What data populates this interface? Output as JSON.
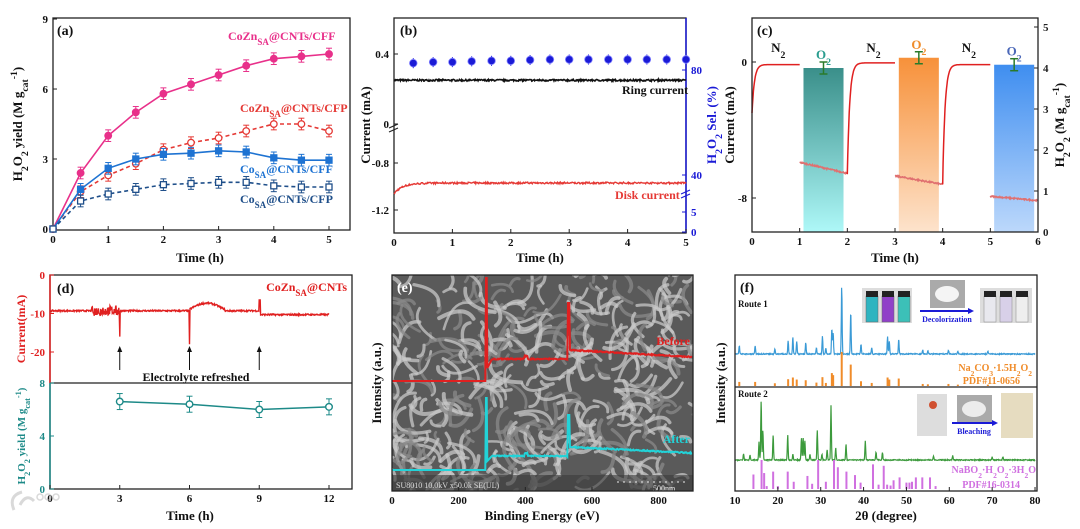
{
  "watermark": {
    "logo_text": "大数跨境"
  },
  "chart_data": [
    {
      "panel": "(a)",
      "type": "line",
      "xlabel": "Time (h)",
      "ylabel": "H_{2}O_{2} yield (M g_{cat}^{-1})",
      "xlim": [
        0,
        5
      ],
      "ylim": [
        0,
        9
      ],
      "xticks": [
        0,
        1,
        2,
        3,
        4,
        5
      ],
      "yticks": [
        0,
        3,
        6,
        9
      ],
      "x": [
        0,
        0.5,
        1,
        1.5,
        2,
        2.5,
        3,
        3.5,
        4,
        4.5,
        5
      ],
      "series": [
        {
          "name": "CoZn_{SA}@CNTs/CFF",
          "color": "#e8308a",
          "style": "solid",
          "marker": "circle",
          "values": [
            0,
            2.4,
            4.0,
            5.0,
            5.8,
            6.2,
            6.6,
            7.0,
            7.3,
            7.4,
            7.5
          ]
        },
        {
          "name": "CoZn_{SA}@CNTs/CFP",
          "color": "#e53935",
          "style": "dashed",
          "marker": "open-circle",
          "values": [
            0,
            1.6,
            2.3,
            2.8,
            3.4,
            3.7,
            3.9,
            4.2,
            4.5,
            4.5,
            4.2
          ]
        },
        {
          "name": "Co_{SA}@CNTs/CFF",
          "color": "#1e73d2",
          "style": "solid",
          "marker": "square",
          "values": [
            0,
            1.7,
            2.6,
            3.0,
            3.2,
            3.25,
            3.35,
            3.3,
            3.05,
            2.95,
            2.95
          ]
        },
        {
          "name": "Co_{SA}@CNTs/CFP",
          "color": "#1f4f8a",
          "style": "dashed",
          "marker": "open-square",
          "values": [
            0,
            1.2,
            1.5,
            1.7,
            1.9,
            1.95,
            2.0,
            2.0,
            1.85,
            1.8,
            1.8
          ]
        }
      ],
      "error": 0.25
    },
    {
      "panel": "(b)",
      "type": "line",
      "xlabel": "Time (h)",
      "ylabel": "Current (mA)",
      "ylabel_right": "H_{2}O_{2} Sel. (%)",
      "xlim": [
        0,
        5
      ],
      "xticks": [
        0,
        1,
        2,
        3,
        4,
        5
      ],
      "yticks": [
        0.4,
        0.0,
        -0.8,
        -1.2
      ],
      "yticks_right": [
        80,
        40,
        5,
        0
      ],
      "ring_current": {
        "label": "Ring current",
        "value": 0.25,
        "color": "#111111"
      },
      "disk_current": {
        "label": "Disk current",
        "start": -1.06,
        "steady": -0.97,
        "color": "#e53935"
      },
      "selectivity": {
        "color": "#1a1ad6",
        "x": [
          0.33,
          0.67,
          1,
          1.33,
          1.67,
          2,
          2.33,
          2.67,
          3,
          3.33,
          3.67,
          4,
          4.33,
          4.67,
          5
        ],
        "values": [
          82.6,
          83.0,
          83.0,
          83.3,
          83.5,
          83.5,
          83.8,
          84,
          84,
          84,
          84,
          84,
          84,
          84,
          84
        ]
      }
    },
    {
      "panel": "(c)",
      "type": "bar",
      "xlabel": "Time (h)",
      "ylabel": "Current (mA)",
      "ylabel_right": "H_{2}O_{2} (M g_{cat}^{-1})",
      "xlim": [
        0,
        6
      ],
      "xticks": [
        0,
        1,
        2,
        3,
        4,
        5,
        6
      ],
      "yticks": [
        0,
        -8
      ],
      "yticks_right": [
        0,
        1,
        2,
        3,
        4,
        5
      ],
      "gas_labels": [
        {
          "text": "N_{2}",
          "t": 0.55,
          "color": "#111111"
        },
        {
          "text": "O_{2}",
          "t": 1.5,
          "color": "#2a9d8f"
        },
        {
          "text": "N_{2}",
          "t": 2.55,
          "color": "#111111"
        },
        {
          "text": "O_{2}",
          "t": 3.5,
          "color": "#f08c2a"
        },
        {
          "text": "N_{2}",
          "t": 4.55,
          "color": "#111111"
        },
        {
          "text": "O_{2}",
          "t": 5.5,
          "color": "#4a67b8"
        }
      ],
      "bars": [
        {
          "t": [
            1.08,
            1.92
          ],
          "yield": 4.0,
          "top": "#3a8f8a",
          "bottom": "#aef8f8"
        },
        {
          "t": [
            3.08,
            3.92
          ],
          "yield": 4.25,
          "top": "#f7913a",
          "bottom": "#fde3cc"
        },
        {
          "t": [
            5.08,
            5.92
          ],
          "yield": 4.08,
          "top": "#3f8ef0",
          "bottom": "#bcd8fb"
        }
      ],
      "current_segments": [
        {
          "gas": "N2",
          "t": [
            0,
            1
          ],
          "start": -3.0,
          "end": -0.15
        },
        {
          "gas": "O2",
          "t": [
            1,
            2
          ],
          "start": -5.9,
          "end": -6.55
        },
        {
          "gas": "N2",
          "t": [
            2,
            3
          ],
          "start": -6.6,
          "end": -0.05
        },
        {
          "gas": "O2",
          "t": [
            3,
            4
          ],
          "start": -6.7,
          "end": -7.2
        },
        {
          "gas": "N2",
          "t": [
            4,
            5
          ],
          "start": -7.2,
          "end": -0.15
        },
        {
          "gas": "O2",
          "t": [
            5,
            6
          ],
          "start": -7.9,
          "end": -8.15
        }
      ]
    },
    {
      "panel": "(d)",
      "type": "line",
      "label": "CoZn_{SA}@CNTs",
      "annotation": "Electrolyte refreshed",
      "xlabel": "Time (h)",
      "ylabel_top": "Current(mA)",
      "ylabel_bottom": "H_{2}O_{2} yield (M g_{cat}^{-1})",
      "xlim": [
        0,
        12
      ],
      "xticks": [
        0,
        3,
        6,
        9,
        12
      ],
      "yticks_top": [
        0,
        -10,
        -20
      ],
      "yticks_bottom": [
        8,
        4,
        0
      ],
      "current": {
        "mean": -9.3,
        "after_9h": -10.3,
        "spikes": [
          {
            "t": 3,
            "min": -16
          },
          {
            "t": 6,
            "min": -18
          },
          {
            "t": 9,
            "min": -17
          }
        ]
      },
      "yield": {
        "x": [
          3,
          6,
          9,
          12
        ],
        "values": [
          6.6,
          6.4,
          6.0,
          6.2
        ],
        "color": "#1d8a88"
      }
    },
    {
      "panel": "(e)",
      "type": "line",
      "xlabel": "Binding Energy (eV)",
      "ylabel": "Intensity (a.u.)",
      "xlim": [
        0,
        900
      ],
      "xticks": [
        0,
        200,
        400,
        600,
        800
      ],
      "sem_caption": "SU8010 10.0kV x50.0k SE(UL)",
      "scale_bar": "500nm",
      "series": [
        {
          "name": "Before",
          "color": "#e02020",
          "peaks_eV": [
            284,
            532
          ]
        },
        {
          "name": "After",
          "color": "#22d3d8",
          "peaks_eV": [
            284,
            532
          ]
        }
      ]
    },
    {
      "panel": "(f)",
      "type": "line",
      "xlabel": "2θ (degree)",
      "ylabel": "Intensity (a.u.)",
      "xlim": [
        10,
        80
      ],
      "xticks": [
        10,
        20,
        30,
        40,
        50,
        60,
        70,
        80
      ],
      "route1": {
        "label": "Route 1",
        "color": "#3a9ad6",
        "inset_label": "Decolorization",
        "reference": "Na_{2}CO_{3}·1.5H_{2}O_{2}",
        "pdf": "PDF#11-0656",
        "ref_color": "#f08c2a",
        "peaks": [
          [
            11,
            12
          ],
          [
            14.7,
            12
          ],
          [
            19.3,
            8
          ],
          [
            22.4,
            20
          ],
          [
            23.5,
            25
          ],
          [
            24.4,
            19
          ],
          [
            26.5,
            17
          ],
          [
            29,
            10
          ],
          [
            30.4,
            26
          ],
          [
            31.2,
            9
          ],
          [
            32.6,
            38
          ],
          [
            32.9,
            32
          ],
          [
            34.9,
            100
          ],
          [
            37,
            63
          ],
          [
            39.4,
            14
          ],
          [
            41.9,
            9
          ],
          [
            45.6,
            25
          ],
          [
            46,
            19
          ],
          [
            48.2,
            22
          ],
          [
            53.8,
            6
          ],
          [
            55,
            5
          ],
          [
            59.8,
            6
          ],
          [
            62,
            4
          ],
          [
            69,
            4
          ]
        ]
      },
      "route2": {
        "label": "Route 2",
        "color": "#3c9a3c",
        "inset_label": "Bleaching",
        "reference": "NaBO_{2}·H_{2}O_{2}·3H_{2}O",
        "pdf": "PDF#16-0314",
        "ref_color": "#d070e0",
        "peaks": [
          [
            12,
            10
          ],
          [
            13.5,
            8
          ],
          [
            15.6,
            30
          ],
          [
            16.1,
            100
          ],
          [
            16.5,
            50
          ],
          [
            18.9,
            42
          ],
          [
            22.3,
            42
          ],
          [
            23.5,
            10
          ],
          [
            25.5,
            37
          ],
          [
            25.9,
            37
          ],
          [
            26.3,
            33
          ],
          [
            27.5,
            10
          ],
          [
            29.2,
            50
          ],
          [
            30.3,
            10
          ],
          [
            31.5,
            17
          ],
          [
            32.4,
            92
          ],
          [
            33.5,
            20
          ],
          [
            35.9,
            27
          ],
          [
            40.4,
            32
          ],
          [
            42.9,
            13
          ],
          [
            44.4,
            13
          ],
          [
            56.3,
            7
          ],
          [
            60.8,
            8
          ],
          [
            70,
            5
          ],
          [
            72.5,
            5
          ]
        ],
        "ref_peaks": [
          [
            14.3,
            50
          ],
          [
            16.2,
            100
          ],
          [
            16.8,
            55
          ],
          [
            17.4,
            10
          ],
          [
            18.9,
            60
          ],
          [
            20,
            10
          ],
          [
            22.3,
            60
          ],
          [
            23.7,
            25
          ],
          [
            26.9,
            45
          ],
          [
            28,
            18
          ],
          [
            29.4,
            100
          ],
          [
            31.2,
            25
          ],
          [
            33.1,
            100
          ],
          [
            34,
            75
          ],
          [
            36,
            60
          ],
          [
            38,
            48
          ],
          [
            39.3,
            22
          ],
          [
            42.2,
            85
          ],
          [
            43.5,
            15
          ],
          [
            44.7,
            80
          ],
          [
            45.5,
            15
          ],
          [
            46.3,
            12
          ],
          [
            47,
            30
          ],
          [
            48.4,
            40
          ],
          [
            50,
            22
          ],
          [
            50.7,
            22
          ],
          [
            51.3,
            25
          ],
          [
            52.2,
            40
          ],
          [
            53.7,
            40
          ],
          [
            55.5,
            40
          ],
          [
            56.8,
            10
          ]
        ]
      }
    }
  ]
}
